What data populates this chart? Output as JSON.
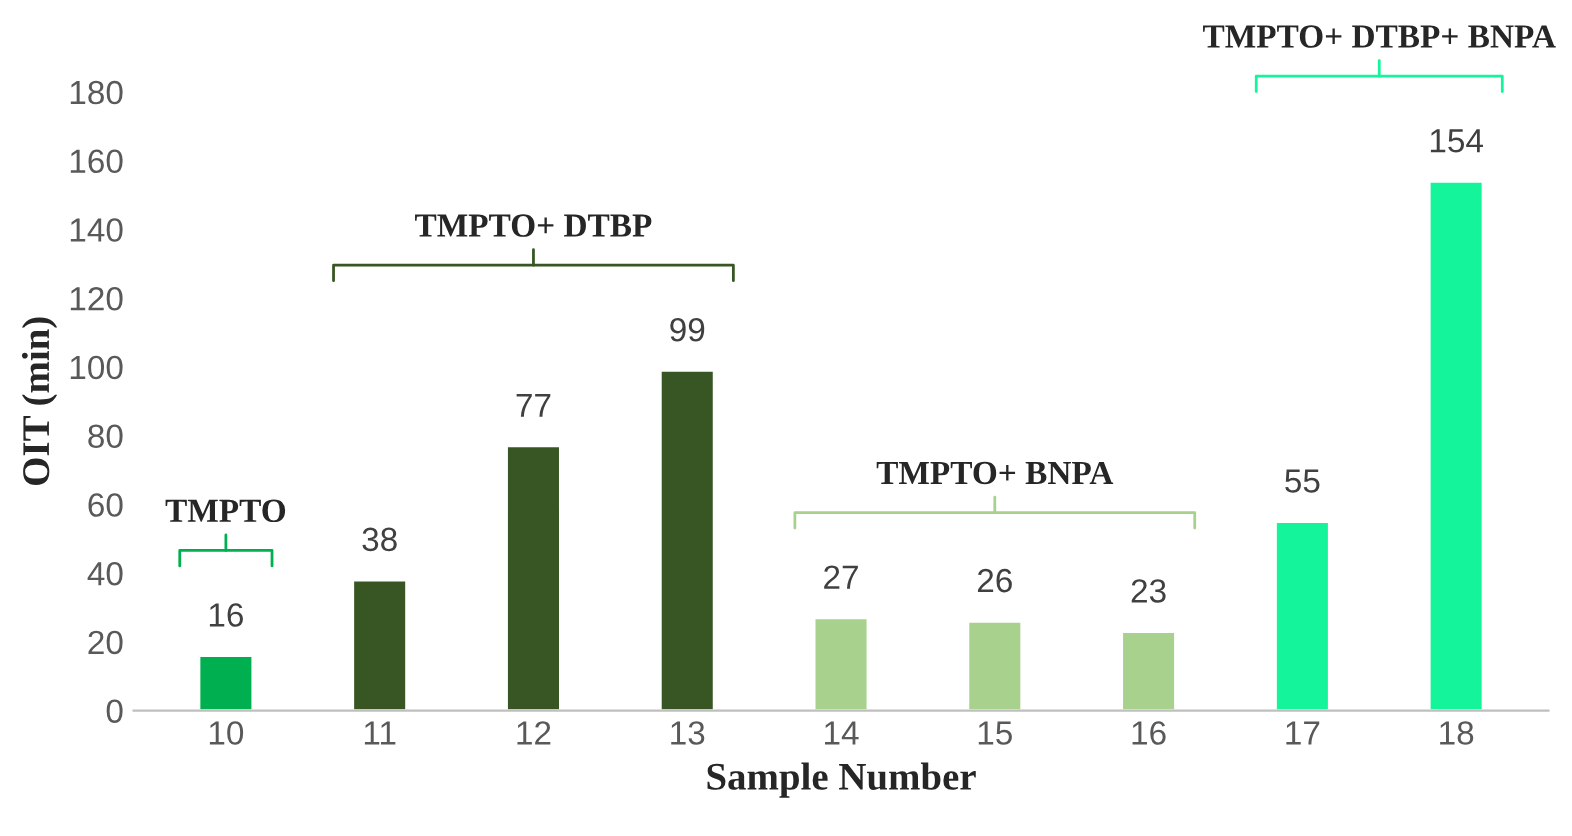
{
  "chart_data": {
    "type": "bar",
    "xlabel": "Sample Number",
    "ylabel": "OIT (min)",
    "categories": [
      "10",
      "11",
      "12",
      "13",
      "14",
      "15",
      "16",
      "17",
      "18"
    ],
    "values": [
      16,
      38,
      77,
      99,
      27,
      26,
      23,
      55,
      154
    ],
    "colors": [
      "#00b050",
      "#375623",
      "#375623",
      "#375623",
      "#a9d18e",
      "#a9d18e",
      "#a9d18e",
      "#14f59b",
      "#14f59b"
    ],
    "ylim": [
      0,
      180
    ],
    "yticks": [
      0,
      20,
      40,
      60,
      80,
      100,
      120,
      140,
      160,
      180
    ],
    "data_labels": true,
    "grid": false,
    "legend": false,
    "annotations": [
      "TMPTO",
      "TMPTO+ DTBP",
      "TMPTO+ BNPA",
      "TMPTO+ DTBP+ BNPA"
    ]
  }
}
